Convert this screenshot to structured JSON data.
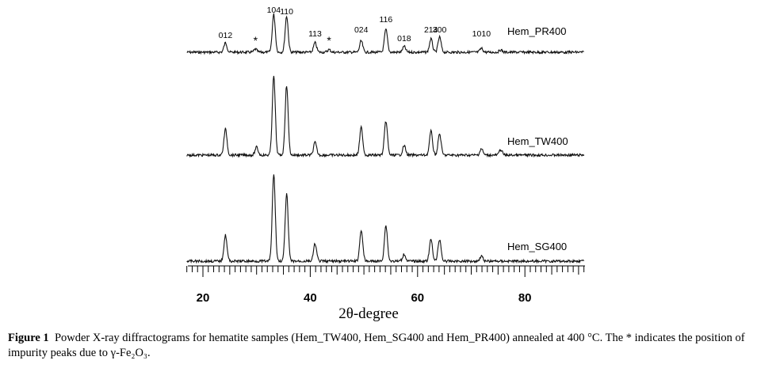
{
  "chart_data": {
    "type": "line",
    "xlabel": "2θ-degree",
    "xlim": [
      16,
      93
    ],
    "x_ticks": [
      20,
      40,
      60,
      80
    ],
    "x_tick_labels": [
      "20",
      "40",
      "60",
      "80"
    ],
    "minor_tick_step": 1,
    "y_axis_shown": false,
    "grid": false,
    "series": [
      {
        "name": "Hem_PR400",
        "peaks": [
          {
            "x": 24.2,
            "h": 0.25
          },
          {
            "x": 29.8,
            "h": 0.08
          },
          {
            "x": 33.2,
            "h": 1.0
          },
          {
            "x": 35.6,
            "h": 0.95
          },
          {
            "x": 40.9,
            "h": 0.25
          },
          {
            "x": 43.5,
            "h": 0.07
          },
          {
            "x": 49.5,
            "h": 0.3
          },
          {
            "x": 54.1,
            "h": 0.6
          },
          {
            "x": 57.5,
            "h": 0.15
          },
          {
            "x": 62.5,
            "h": 0.35
          },
          {
            "x": 64.1,
            "h": 0.4
          },
          {
            "x": 71.9,
            "h": 0.1
          },
          {
            "x": 75.5,
            "h": 0.06
          }
        ]
      },
      {
        "name": "Hem_TW400",
        "peaks": [
          {
            "x": 24.2,
            "h": 0.33
          },
          {
            "x": 30.0,
            "h": 0.1
          },
          {
            "x": 33.2,
            "h": 1.0
          },
          {
            "x": 35.6,
            "h": 0.88
          },
          {
            "x": 40.9,
            "h": 0.16
          },
          {
            "x": 49.5,
            "h": 0.35
          },
          {
            "x": 54.1,
            "h": 0.43
          },
          {
            "x": 57.5,
            "h": 0.12
          },
          {
            "x": 62.5,
            "h": 0.3
          },
          {
            "x": 64.1,
            "h": 0.27
          },
          {
            "x": 71.9,
            "h": 0.08
          },
          {
            "x": 75.5,
            "h": 0.07
          }
        ]
      },
      {
        "name": "Hem_SG400",
        "peaks": [
          {
            "x": 24.2,
            "h": 0.3
          },
          {
            "x": 33.2,
            "h": 1.0
          },
          {
            "x": 35.6,
            "h": 0.77
          },
          {
            "x": 40.9,
            "h": 0.2
          },
          {
            "x": 49.5,
            "h": 0.36
          },
          {
            "x": 54.1,
            "h": 0.41
          },
          {
            "x": 57.5,
            "h": 0.08
          },
          {
            "x": 62.5,
            "h": 0.25
          },
          {
            "x": 64.1,
            "h": 0.25
          },
          {
            "x": 71.9,
            "h": 0.06
          }
        ]
      }
    ],
    "annotations": [
      {
        "text": "012",
        "x": 24.2
      },
      {
        "text": "*",
        "x": 29.8
      },
      {
        "text": "104",
        "x": 33.2
      },
      {
        "text": "110",
        "x": 35.6
      },
      {
        "text": "113",
        "x": 40.9
      },
      {
        "text": "*",
        "x": 43.5
      },
      {
        "text": "024",
        "x": 49.5
      },
      {
        "text": "116",
        "x": 54.1
      },
      {
        "text": "018",
        "x": 57.5
      },
      {
        "text": "214",
        "x": 62.5
      },
      {
        "text": "300",
        "x": 64.1
      },
      {
        "text": "1010",
        "x": 71.9
      }
    ]
  },
  "caption": {
    "label": "Figure 1",
    "text": "Powder X-ray diffractograms for hematite samples (Hem_TW400, Hem_SG400 and Hem_PR400) annealed at 400 °C. The * indicates the position of impurity peaks due to γ-Fe₂O₃."
  }
}
